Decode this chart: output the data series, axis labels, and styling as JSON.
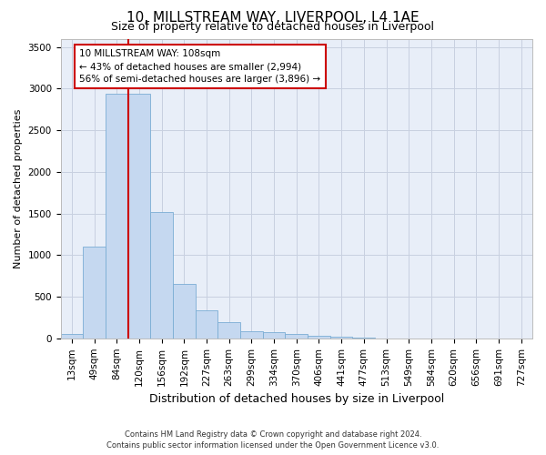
{
  "title": "10, MILLSTREAM WAY, LIVERPOOL, L4 1AE",
  "subtitle": "Size of property relative to detached houses in Liverpool",
  "xlabel": "Distribution of detached houses by size in Liverpool",
  "ylabel": "Number of detached properties",
  "bar_color": "#c5d8f0",
  "bar_edge_color": "#7aadd4",
  "bg_color": "#e8eef8",
  "grid_color": "#c8d0e0",
  "property_line_color": "#cc0000",
  "annotation_box_color": "#cc0000",
  "categories": [
    "13sqm",
    "49sqm",
    "84sqm",
    "120sqm",
    "156sqm",
    "192sqm",
    "227sqm",
    "263sqm",
    "299sqm",
    "334sqm",
    "370sqm",
    "406sqm",
    "441sqm",
    "477sqm",
    "513sqm",
    "549sqm",
    "584sqm",
    "620sqm",
    "656sqm",
    "691sqm",
    "727sqm"
  ],
  "values": [
    50,
    1100,
    2940,
    2940,
    1520,
    650,
    340,
    200,
    90,
    70,
    55,
    30,
    18,
    8,
    3,
    3,
    2,
    1,
    0,
    0,
    0
  ],
  "property_bar_index": 2.5,
  "annotation_text_line1": "10 MILLSTREAM WAY: 108sqm",
  "annotation_text_line2": "← 43% of detached houses are smaller (2,994)",
  "annotation_text_line3": "56% of semi-detached houses are larger (3,896) →",
  "ylim": [
    0,
    3600
  ],
  "yticks": [
    0,
    500,
    1000,
    1500,
    2000,
    2500,
    3000,
    3500
  ],
  "footer_line1": "Contains HM Land Registry data © Crown copyright and database right 2024.",
  "footer_line2": "Contains public sector information licensed under the Open Government Licence v3.0.",
  "title_fontsize": 11,
  "subtitle_fontsize": 9,
  "xlabel_fontsize": 9,
  "ylabel_fontsize": 8,
  "tick_fontsize": 7.5,
  "footer_fontsize": 6
}
